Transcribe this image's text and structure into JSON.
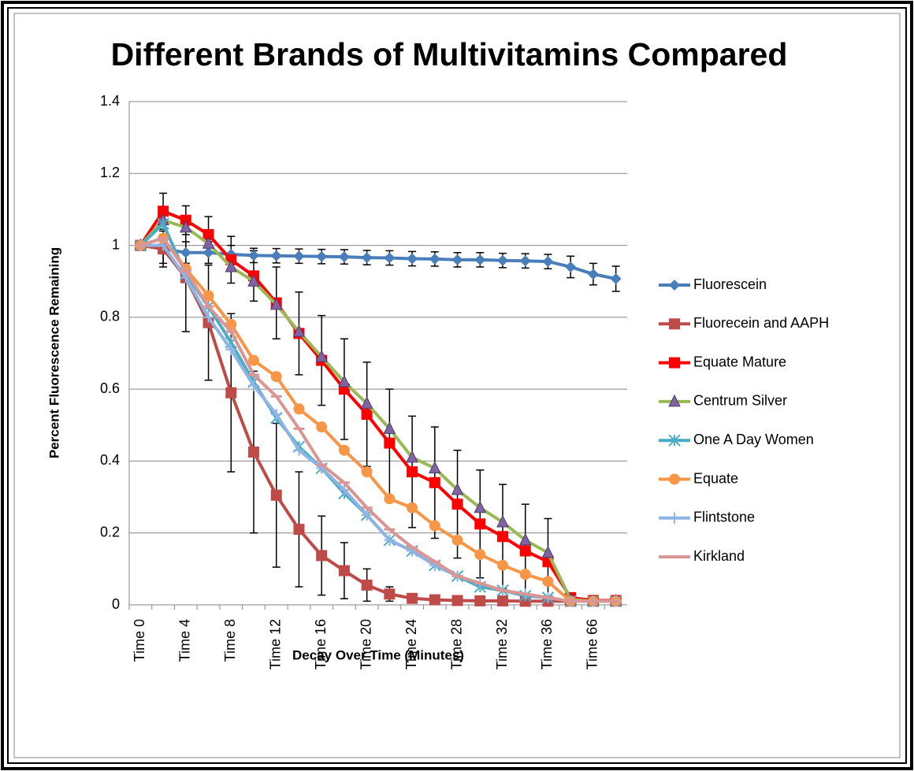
{
  "chart_data": {
    "type": "line",
    "title": "Different Brands of Multivitamins Compared",
    "x_label": "Decay Over Time (Minutes)",
    "y_label": "Percent Fluorescence Remaining",
    "categories": [
      "Time 0",
      null,
      "Time 4",
      null,
      "Time 8",
      null,
      "Time 12",
      null,
      "Time 16",
      null,
      "Time 20",
      null,
      "Time 24",
      null,
      "Time 28",
      null,
      "Time 32",
      null,
      "Time 36",
      null,
      "Time 66",
      null
    ],
    "ylim": [
      0,
      1.4
    ],
    "yticks": [
      0,
      0.2,
      0.4,
      0.6,
      0.8,
      1,
      1.2,
      1.4
    ],
    "grid": true,
    "legend": "right",
    "series": [
      {
        "name": "Fluorescein",
        "color": "#4a7ebb",
        "marker": "diamond",
        "values": [
          1,
          0.99,
          0.98,
          0.98,
          0.975,
          0.972,
          0.971,
          0.97,
          0.969,
          0.968,
          0.966,
          0.965,
          0.963,
          0.962,
          0.96,
          0.96,
          0.958,
          0.957,
          0.955,
          0.94,
          0.92,
          0.907
        ],
        "errors": [
          0.005,
          0.04,
          0.03,
          0.03,
          0.025,
          0.02,
          0.02,
          0.02,
          0.02,
          0.02,
          0.02,
          0.02,
          0.02,
          0.02,
          0.02,
          0.02,
          0.02,
          0.02,
          0.02,
          0.03,
          0.03,
          0.035
        ]
      },
      {
        "name": "Fluorecein and AAPH",
        "color": "#be4b48",
        "marker": "square",
        "values": [
          1,
          0.99,
          0.91,
          0.785,
          0.59,
          0.425,
          0.305,
          0.21,
          0.137,
          0.095,
          0.055,
          0.03,
          0.018,
          0.014,
          0.012,
          0.011,
          0.011,
          0.01,
          0.01,
          0.01,
          0.01,
          0.01
        ],
        "errors": [
          0.005,
          0.05,
          0.15,
          0.16,
          0.22,
          0.225,
          0.2,
          0.16,
          0.11,
          0.078,
          0.045,
          0.02,
          0.01,
          0.01,
          0.01,
          0.01,
          0.01,
          0.01,
          0.01,
          0.01,
          0.01,
          0.01
        ]
      },
      {
        "name": "Equate Mature",
        "color": "#ff0000",
        "marker": "square",
        "values": [
          1,
          1.095,
          1.07,
          1.03,
          0.96,
          0.915,
          0.84,
          0.755,
          0.68,
          0.6,
          0.53,
          0.45,
          0.37,
          0.34,
          0.28,
          0.225,
          0.19,
          0.15,
          0.12,
          0.02,
          0.012,
          0.012
        ],
        "errors": [
          0.005,
          0.05,
          0.04,
          0.05,
          0.065,
          0.07,
          0.1,
          0.115,
          0.125,
          0.14,
          0.145,
          0.15,
          0.155,
          0.155,
          0.15,
          0.15,
          0.145,
          0.13,
          0.12,
          0.01,
          0.01,
          0.01
        ]
      },
      {
        "name": "Centrum Silver",
        "color": "#98b954",
        "marker": "triangle",
        "values": [
          1,
          1.07,
          1.05,
          1.005,
          0.94,
          0.9,
          0.835,
          0.76,
          0.69,
          0.62,
          0.56,
          0.49,
          0.41,
          0.38,
          0.32,
          0.27,
          0.23,
          0.18,
          0.145,
          0.015,
          0.01,
          0.01
        ]
      },
      {
        "name": "One A Day Women",
        "color": "#4bacc6",
        "marker": "asterisk",
        "values": [
          1,
          1.06,
          0.92,
          0.83,
          0.73,
          0.62,
          0.52,
          0.44,
          0.38,
          0.31,
          0.25,
          0.18,
          0.15,
          0.11,
          0.08,
          0.05,
          0.04,
          0.025,
          0.02,
          0.01,
          0.01,
          0.01
        ]
      },
      {
        "name": "Equate",
        "color": "#f79646",
        "marker": "circle",
        "values": [
          1,
          1.02,
          0.935,
          0.86,
          0.78,
          0.68,
          0.635,
          0.545,
          0.495,
          0.43,
          0.37,
          0.295,
          0.27,
          0.22,
          0.18,
          0.14,
          0.11,
          0.085,
          0.065,
          0.01,
          0.01,
          0.01
        ]
      },
      {
        "name": "Flintstone",
        "color": "#8eb4e3",
        "marker": "plus",
        "values": [
          1,
          1.0,
          0.91,
          0.8,
          0.71,
          0.61,
          0.53,
          0.43,
          0.38,
          0.32,
          0.25,
          0.18,
          0.15,
          0.11,
          0.08,
          0.06,
          0.04,
          0.03,
          0.02,
          0.01,
          0.01,
          0.01
        ]
      },
      {
        "name": "Kirkland",
        "color": "#d99694",
        "marker": "dash",
        "values": [
          1,
          1.02,
          0.93,
          0.83,
          0.76,
          0.64,
          0.58,
          0.49,
          0.39,
          0.34,
          0.27,
          0.21,
          0.16,
          0.12,
          0.08,
          0.06,
          0.04,
          0.03,
          0.02,
          0.01,
          0.01,
          0.01
        ]
      }
    ]
  }
}
